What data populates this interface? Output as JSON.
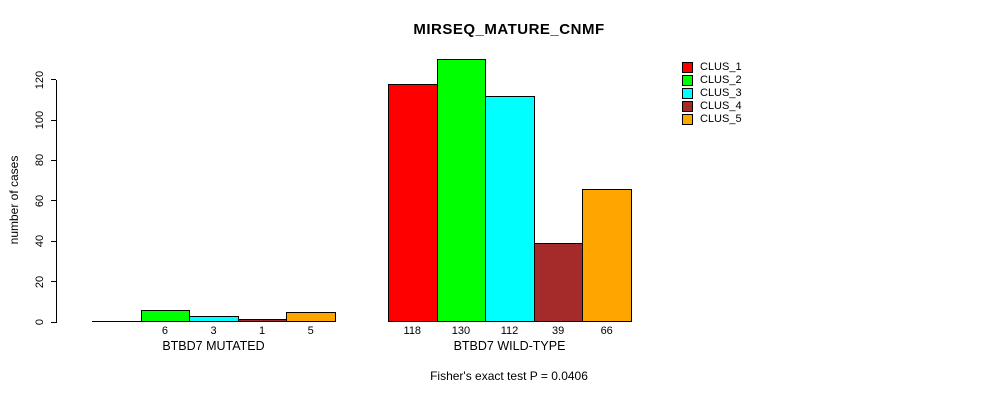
{
  "chart_data": {
    "type": "bar",
    "title": "MIRSEQ_MATURE_CNMF",
    "ylabel": "number of cases",
    "xlabel": "",
    "ylim": [
      0,
      130
    ],
    "yticks": [
      0,
      20,
      40,
      60,
      80,
      100,
      120
    ],
    "grid": false,
    "legend_position": "top-right",
    "groups": [
      "BTBD7 MUTATED",
      "BTBD7 WILD-TYPE"
    ],
    "series": [
      {
        "name": "CLUS_1",
        "color": "#FF0000",
        "values": [
          0,
          118
        ]
      },
      {
        "name": "CLUS_2",
        "color": "#00FF00",
        "values": [
          6,
          130
        ]
      },
      {
        "name": "CLUS_3",
        "color": "#00FFFF",
        "values": [
          3,
          112
        ]
      },
      {
        "name": "CLUS_4",
        "color": "#A52A2A",
        "values": [
          1,
          39
        ]
      },
      {
        "name": "CLUS_5",
        "color": "#FFA500",
        "values": [
          5,
          66
        ]
      }
    ],
    "bar_value_labels": [
      [
        "",
        "6",
        "3",
        "1",
        "5"
      ],
      [
        "118",
        "130",
        "112",
        "39",
        "66"
      ]
    ],
    "caption": "Fisher's exact test P = 0.0406"
  }
}
